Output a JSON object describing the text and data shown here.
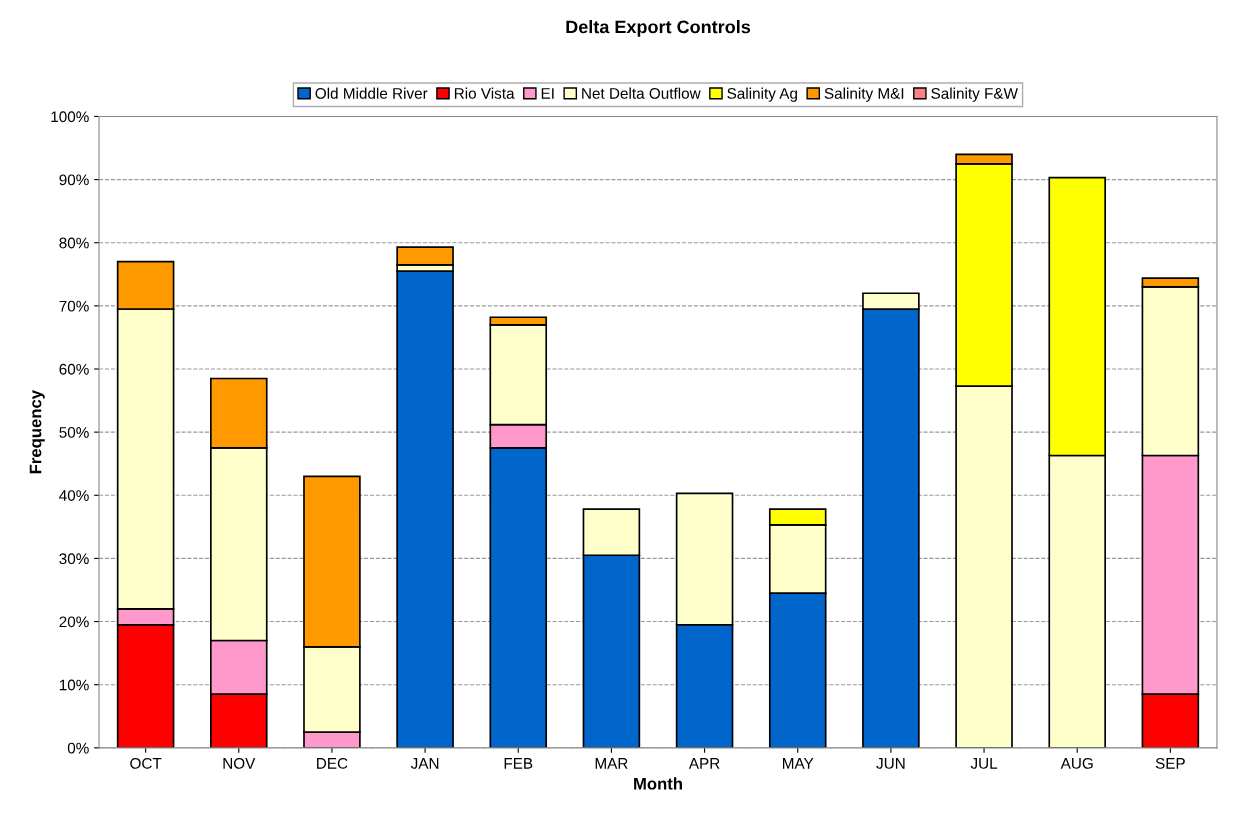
{
  "chart_data": {
    "type": "bar",
    "stacked": true,
    "title": "Delta Export Controls",
    "xlabel": "Month",
    "ylabel": "Frequency",
    "categories": [
      "OCT",
      "NOV",
      "DEC",
      "JAN",
      "FEB",
      "MAR",
      "APR",
      "MAY",
      "JUN",
      "JUL",
      "AUG",
      "SEP"
    ],
    "series": [
      {
        "name": "Old Middle River",
        "color": "#0066cc",
        "values": [
          null,
          null,
          null,
          75.5,
          47.5,
          30.5,
          19.5,
          24.5,
          69.5,
          null,
          null,
          null
        ]
      },
      {
        "name": "Rio Vista",
        "color": "#ff0000",
        "values": [
          19.5,
          8.5,
          null,
          null,
          null,
          null,
          null,
          null,
          null,
          null,
          null,
          8.5
        ]
      },
      {
        "name": "EI",
        "color": "#ff99cc",
        "values": [
          2.5,
          8.5,
          2.5,
          null,
          3.7,
          null,
          null,
          null,
          null,
          null,
          null,
          37.8
        ]
      },
      {
        "name": "Net Delta Outflow",
        "color": "#ffffcc",
        "values": [
          47.5,
          30.5,
          13.5,
          1,
          15.8,
          7.3,
          20.8,
          10.8,
          2.5,
          57.3,
          46.3,
          26.7
        ]
      },
      {
        "name": "Salinity Ag",
        "color": "#ffff00",
        "values": [
          null,
          null,
          null,
          null,
          null,
          null,
          null,
          2.5,
          null,
          35.2,
          44,
          null
        ]
      },
      {
        "name": "Salinity M&I",
        "color": "#ff9900",
        "values": [
          7.5,
          11,
          27,
          2.8,
          1.2,
          null,
          null,
          null,
          null,
          1.5,
          null,
          1.4
        ]
      },
      {
        "name": "Salinity F&W",
        "color": "#ff8080",
        "values": [
          null,
          null,
          null,
          null,
          null,
          null,
          null,
          null,
          null,
          null,
          null,
          null
        ]
      }
    ],
    "ylim": [
      0,
      100
    ],
    "yticks": [
      {
        "value": 0,
        "label": "0%"
      },
      {
        "value": 10,
        "label": "10%"
      },
      {
        "value": 20,
        "label": "20%"
      },
      {
        "value": 30,
        "label": "30%"
      },
      {
        "value": 40,
        "label": "40%"
      },
      {
        "value": 50,
        "label": "50%"
      },
      {
        "value": 60,
        "label": "60%"
      },
      {
        "value": 70,
        "label": "70%"
      },
      {
        "value": 80,
        "label": "80%"
      },
      {
        "value": 90,
        "label": "90%"
      },
      {
        "value": 100,
        "label": "100%"
      }
    ],
    "grid": "y",
    "legend": "top",
    "line_style": "dashed"
  }
}
